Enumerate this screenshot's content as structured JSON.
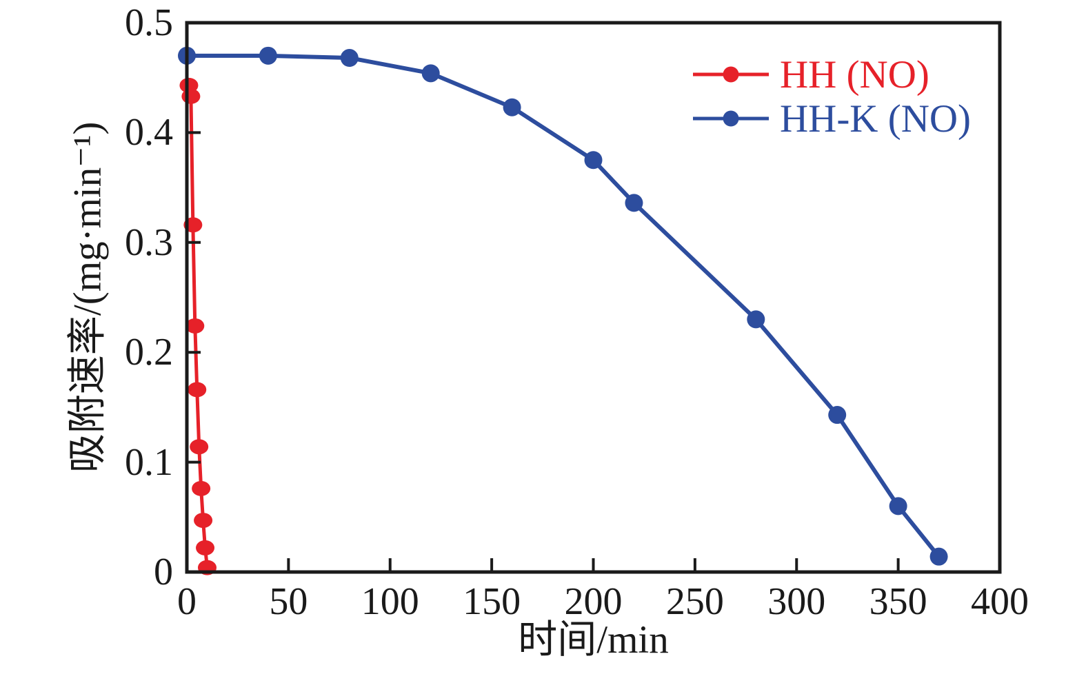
{
  "figure": {
    "background": "#ffffff",
    "axis_color": "#1a1a1a"
  },
  "chart_data": {
    "type": "line",
    "title": "",
    "xlabel": "时间/min",
    "ylabel": "吸附速率/(mg·min⁻¹)",
    "xlim": [
      0,
      400
    ],
    "ylim": [
      0,
      0.5
    ],
    "xticks": [
      0,
      50,
      100,
      150,
      200,
      250,
      300,
      350,
      400
    ],
    "yticks": [
      0,
      0.1,
      0.2,
      0.3,
      0.4,
      0.5
    ],
    "xtick_labels": [
      "0",
      "50",
      "100",
      "150",
      "200",
      "250",
      "300",
      "350",
      "400"
    ],
    "ytick_labels": [
      "0",
      "0.1",
      "0.2",
      "0.3",
      "0.4",
      "0.5"
    ],
    "grid": false,
    "legend_position": "top-right",
    "series": [
      {
        "name": "HH (NO)",
        "color": "#e62129",
        "marker": "ellipse",
        "x": [
          1,
          2,
          3,
          4,
          5,
          6,
          7,
          8,
          9,
          10
        ],
        "y": [
          0.443,
          0.433,
          0.316,
          0.224,
          0.166,
          0.114,
          0.076,
          0.047,
          0.022,
          0.004
        ]
      },
      {
        "name": "HH-K (NO)",
        "color": "#2d4d9e",
        "marker": "circle",
        "x": [
          0,
          40,
          80,
          120,
          160,
          200,
          220,
          280,
          320,
          350,
          370
        ],
        "y": [
          0.47,
          0.47,
          0.468,
          0.454,
          0.423,
          0.375,
          0.336,
          0.23,
          0.143,
          0.06,
          0.014
        ]
      }
    ]
  }
}
